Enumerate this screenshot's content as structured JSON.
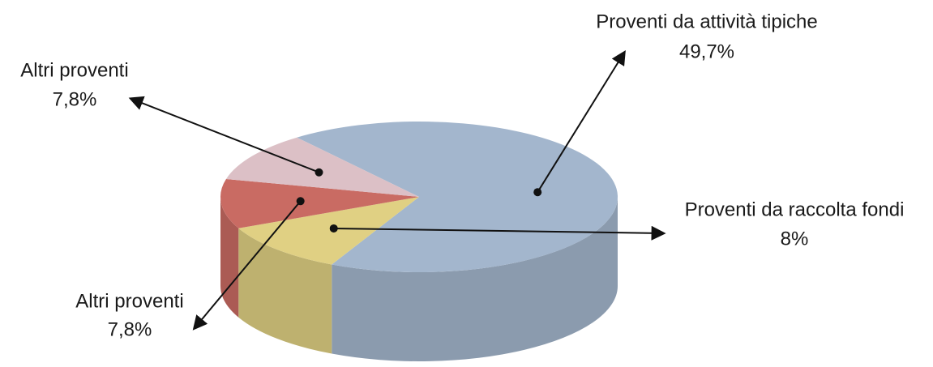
{
  "chart_data": {
    "type": "pie3d",
    "categories": [
      "Proventi da attività tipiche",
      "Proventi da raccolta fondi",
      "Altri proventi",
      "Altri proventi"
    ],
    "values": [
      49.7,
      8,
      7.8,
      7.8
    ],
    "value_labels": [
      "49,7%",
      "8%",
      "7,8%",
      "7,8%"
    ],
    "colors": [
      "#a3b6cd",
      "#e0d083",
      "#c96b63",
      "#dcc0c6"
    ]
  }
}
